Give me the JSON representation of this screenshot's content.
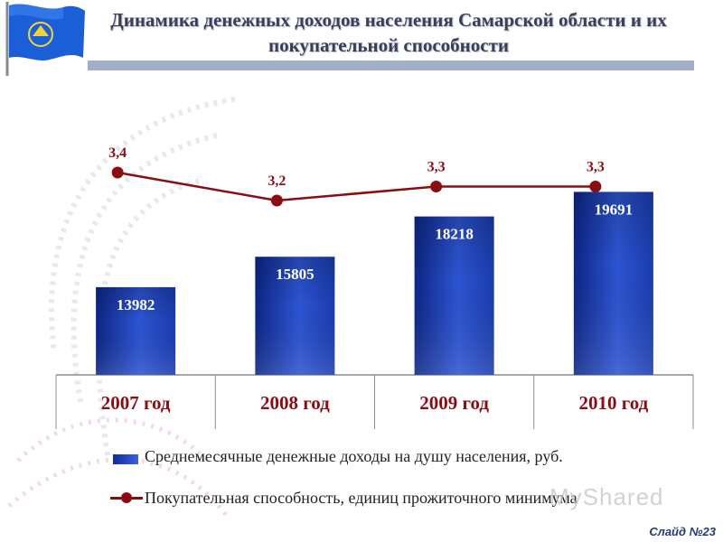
{
  "title": "Динамика денежных доходов населения Самарской области и их покупательной способности",
  "slide_number": "Слайд №23",
  "watermark": "MyShared",
  "colors": {
    "bar_dark": "#102c97",
    "bar_light": "#3a63e0",
    "line": "#8b0d12",
    "title_bar": "#9fb0c8",
    "flag_blue": "#1a5fd8"
  },
  "chart_data": {
    "type": "bar",
    "categories": [
      "2007 год",
      "2008 год",
      "2009 год",
      "2010 год"
    ],
    "series": [
      {
        "name": "Среднемесячные денежные доходы на душу населения, руб.",
        "type": "bar",
        "values": [
          13982,
          15805,
          18218,
          19691
        ],
        "labels": [
          "13982",
          "15805",
          "18218",
          "19691"
        ]
      },
      {
        "name": "Покупательная способность, единиц прожиточного минимума",
        "type": "line",
        "values": [
          3.4,
          3.2,
          3.3,
          3.3
        ],
        "labels": [
          "3,4",
          "3,2",
          "3,3",
          "3,3"
        ]
      }
    ],
    "legend_position": "bottom",
    "grid": false
  },
  "legend": {
    "bar_label": "Среднемесячные денежные доходы на душу населения, руб.",
    "line_label": "Покупательная способность, единиц прожиточного минимума"
  }
}
